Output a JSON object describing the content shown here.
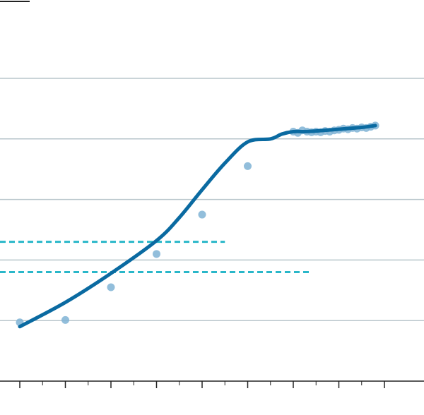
{
  "chart_data": {
    "type": "scatter",
    "title": "",
    "xlabel": "",
    "ylabel": "",
    "xlim": [
      0,
      18
    ],
    "ylim": [
      0,
      6
    ],
    "x_ticks": [
      0,
      1,
      2,
      3,
      4,
      5,
      6,
      7,
      8,
      9,
      10,
      11,
      12,
      13,
      14,
      15,
      16
    ],
    "y_gridlines": [
      1,
      2,
      3,
      4,
      5
    ],
    "grid": "horizontal",
    "legend": "none",
    "colors": {
      "gridline": "#b9c6cc",
      "axis": "#222222",
      "points": "#7fb3d5",
      "fit_line": "#0a6aa1",
      "reference_lines": "#2ab7c9"
    },
    "series": [
      {
        "kind": "points",
        "x": [
          0,
          2,
          4,
          6,
          8,
          10,
          12.0,
          12.2,
          12.4,
          12.6,
          12.8,
          13.0,
          13.2,
          13.4,
          13.6,
          13.8,
          14.0,
          14.2,
          14.4,
          14.6,
          14.8,
          15.0,
          15.2,
          15.4,
          15.6
        ],
        "y": [
          0.97,
          1.01,
          1.55,
          2.1,
          2.75,
          3.55,
          4.12,
          4.1,
          4.14,
          4.12,
          4.11,
          4.12,
          4.11,
          4.13,
          4.12,
          4.14,
          4.15,
          4.17,
          4.16,
          4.18,
          4.17,
          4.19,
          4.18,
          4.2,
          4.22
        ]
      },
      {
        "kind": "fit-line",
        "x": [
          0,
          2,
          4,
          6,
          7,
          8,
          9,
          10,
          11,
          11.5,
          12,
          12.5,
          13,
          14,
          15,
          15.6
        ],
        "y": [
          0.9,
          1.3,
          1.78,
          2.32,
          2.7,
          3.16,
          3.6,
          3.95,
          4.0,
          4.08,
          4.12,
          4.12,
          4.13,
          4.16,
          4.19,
          4.22
        ]
      }
    ],
    "reference_lines": [
      {
        "y": 2.3,
        "x_from": 0,
        "x_to": 9
      },
      {
        "y": 1.8,
        "x_from": 0,
        "x_to": 12.75
      }
    ]
  }
}
